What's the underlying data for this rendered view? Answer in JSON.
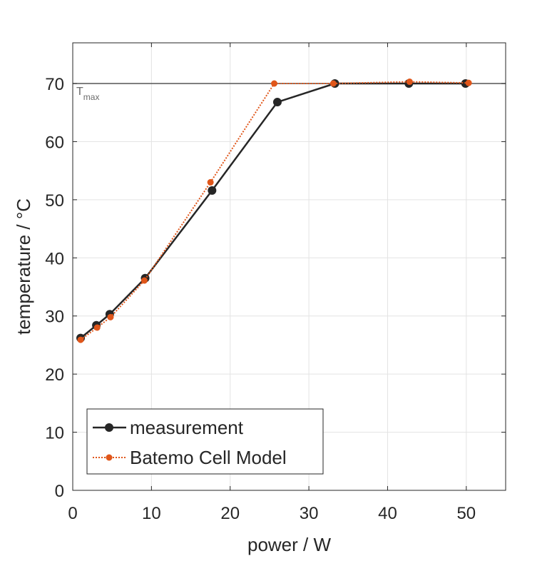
{
  "chart_data": {
    "type": "line",
    "title": "",
    "xlabel": "power / W",
    "ylabel": "temperature / °C",
    "xlim": [
      0,
      55
    ],
    "ylim": [
      0,
      77
    ],
    "xticks": [
      0,
      10,
      20,
      30,
      40,
      50
    ],
    "yticks": [
      0,
      10,
      20,
      30,
      40,
      50,
      60,
      70
    ],
    "grid": true,
    "legend_position": "bottom-left",
    "reference_line": {
      "y": 70,
      "label_main": "T",
      "label_sub": "max",
      "color": "#555555"
    },
    "series": [
      {
        "name": "measurement",
        "color": "#262626",
        "style": "solid",
        "x": [
          1.0,
          3.0,
          4.7,
          9.2,
          17.7,
          26.0,
          33.3,
          42.7,
          49.9
        ],
        "y": [
          26.2,
          28.4,
          30.3,
          36.5,
          51.6,
          66.8,
          70.0,
          70.0,
          70.0
        ]
      },
      {
        "name": "Batemo Cell Model",
        "color": "#e0561a",
        "style": "dotted",
        "x": [
          1.0,
          3.1,
          4.8,
          9.1,
          17.5,
          25.6,
          33.1,
          42.8,
          50.3
        ],
        "y": [
          25.9,
          28.0,
          29.8,
          36.1,
          53.0,
          70.0,
          70.0,
          70.3,
          70.1
        ]
      }
    ]
  }
}
